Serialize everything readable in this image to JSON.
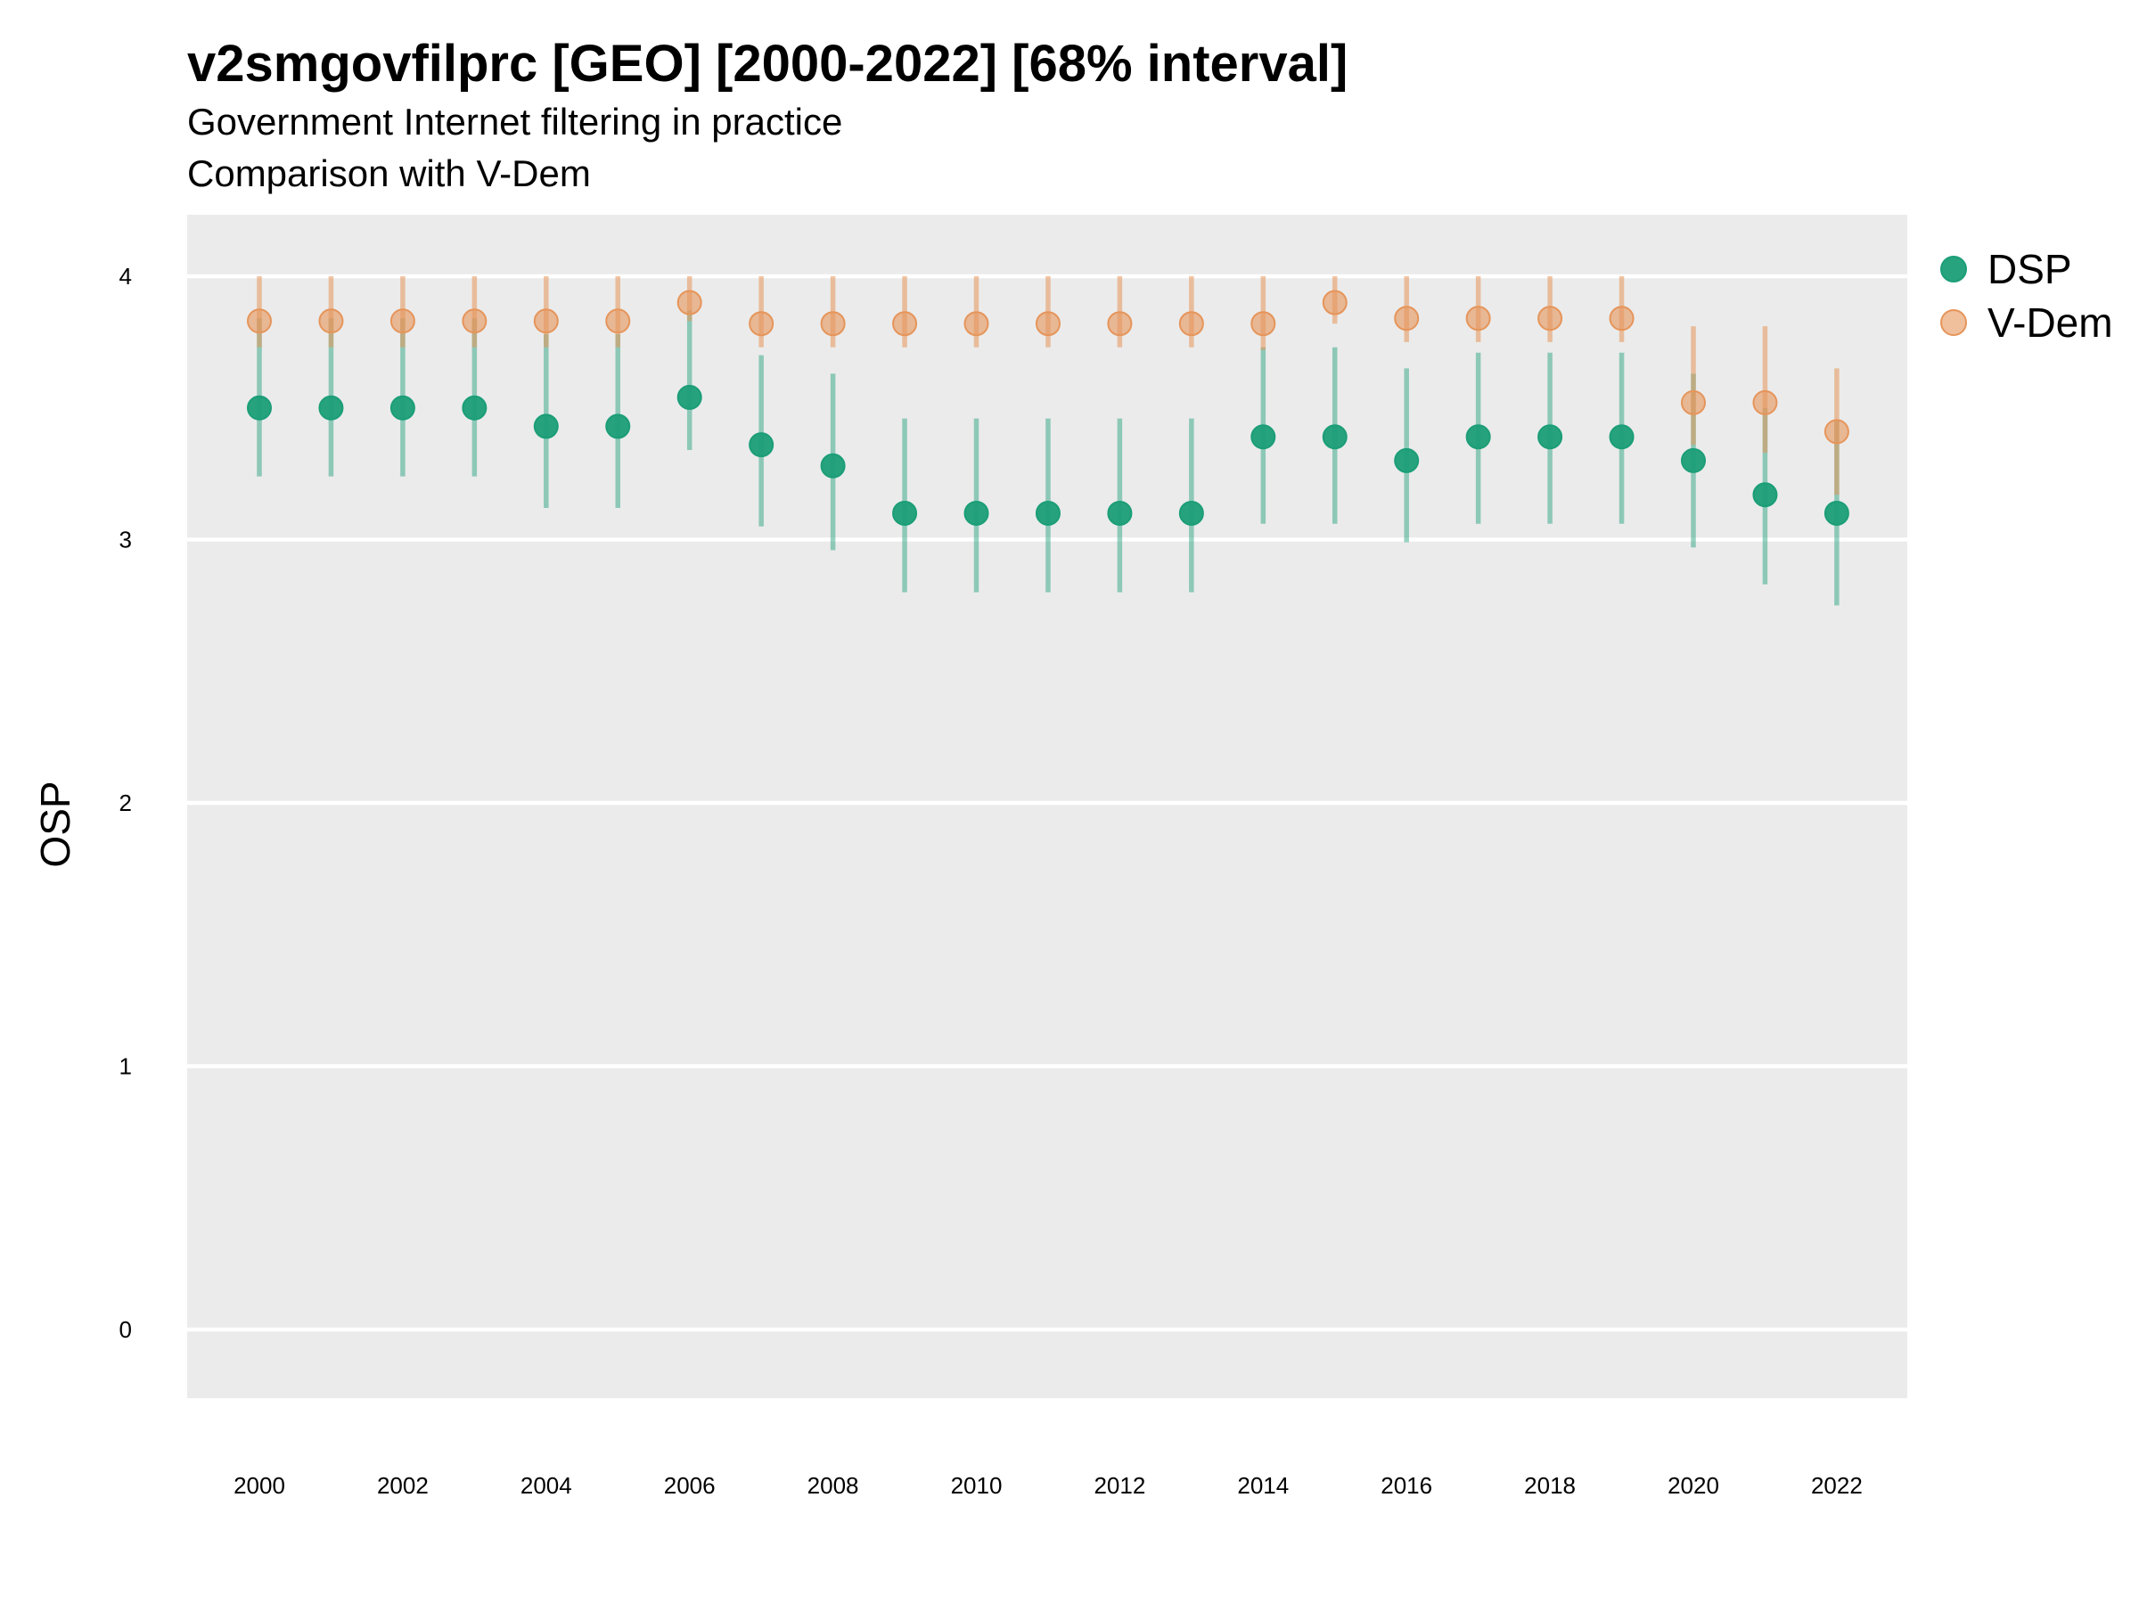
{
  "title": "v2smgovfilprc [GEO] [2000-2022] [68% interval]",
  "subtitle_line1": "Government Internet filtering in practice",
  "subtitle_line2": "Comparison with V-Dem",
  "colors": {
    "panel": "#EBEBEB",
    "grid": "#FFFFFF",
    "dsp": "#1B9E77",
    "vdem": "#E6955A"
  },
  "chart_data": {
    "type": "scatter",
    "title": "v2smgovfilprc [GEO] [2000-2022] [68% interval]",
    "xlabel": "",
    "ylabel": "OSP",
    "ylim": [
      -0.25,
      4.25
    ],
    "y_ticks": [
      0,
      1,
      2,
      3,
      4
    ],
    "x_tick_labels": [
      "2000",
      "2002",
      "2004",
      "2006",
      "2008",
      "2010",
      "2012",
      "2014",
      "2016",
      "2018",
      "2020",
      "2022"
    ],
    "grid": true,
    "legend_position": "right",
    "x": [
      2000,
      2001,
      2002,
      2003,
      2004,
      2005,
      2006,
      2007,
      2008,
      2009,
      2010,
      2011,
      2012,
      2013,
      2014,
      2015,
      2016,
      2017,
      2018,
      2019,
      2020,
      2021,
      2022
    ],
    "series": [
      {
        "name": "DSP",
        "values": [
          3.5,
          3.5,
          3.5,
          3.5,
          3.43,
          3.43,
          3.54,
          3.36,
          3.28,
          3.1,
          3.1,
          3.1,
          3.1,
          3.1,
          3.39,
          3.39,
          3.3,
          3.39,
          3.39,
          3.39,
          3.3,
          3.17,
          3.1
        ],
        "lower": [
          3.24,
          3.24,
          3.24,
          3.24,
          3.12,
          3.12,
          3.34,
          3.05,
          2.96,
          2.8,
          2.8,
          2.8,
          2.8,
          2.8,
          3.06,
          3.06,
          2.99,
          3.06,
          3.06,
          3.06,
          2.97,
          2.83,
          2.75
        ],
        "upper": [
          3.84,
          3.84,
          3.84,
          3.84,
          3.78,
          3.78,
          3.87,
          3.7,
          3.63,
          3.46,
          3.46,
          3.46,
          3.46,
          3.46,
          3.73,
          3.73,
          3.65,
          3.71,
          3.71,
          3.71,
          3.63,
          3.5,
          3.45
        ]
      },
      {
        "name": "V-Dem",
        "values": [
          3.83,
          3.83,
          3.83,
          3.83,
          3.83,
          3.83,
          3.9,
          3.82,
          3.82,
          3.82,
          3.82,
          3.82,
          3.82,
          3.82,
          3.82,
          3.9,
          3.84,
          3.84,
          3.84,
          3.84,
          3.52,
          3.52,
          3.41
        ],
        "lower": [
          3.73,
          3.73,
          3.73,
          3.73,
          3.73,
          3.73,
          3.83,
          3.73,
          3.73,
          3.73,
          3.73,
          3.73,
          3.73,
          3.73,
          3.72,
          3.82,
          3.75,
          3.75,
          3.75,
          3.75,
          3.36,
          3.33,
          3.17
        ],
        "upper": [
          4.0,
          4.0,
          4.0,
          4.0,
          4.0,
          4.0,
          4.0,
          4.0,
          4.0,
          4.0,
          4.0,
          4.0,
          4.0,
          4.0,
          4.0,
          4.0,
          4.0,
          4.0,
          4.0,
          4.0,
          3.81,
          3.81,
          3.65
        ]
      }
    ]
  }
}
